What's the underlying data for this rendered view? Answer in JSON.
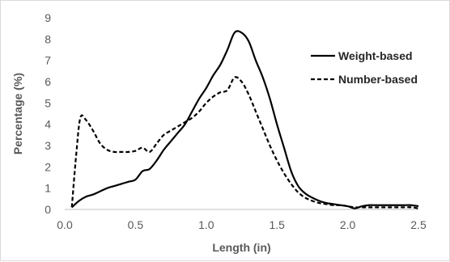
{
  "chart_data": {
    "type": "line",
    "title": "",
    "xlabel": "Length (in)",
    "ylabel": "Percentage (%)",
    "xlim": [
      0,
      2.5
    ],
    "ylim": [
      0,
      9
    ],
    "x_ticks": [
      "0.0",
      "0.5",
      "1.0",
      "1.5",
      "2.0",
      "2.5"
    ],
    "y_ticks": [
      "0",
      "1",
      "2",
      "3",
      "4",
      "5",
      "6",
      "7",
      "8",
      "9"
    ],
    "grid": false,
    "legend_position": "top-right",
    "series": [
      {
        "name": "Weight-based",
        "style": "solid",
        "color": "#000000",
        "x": [
          0.05,
          0.1,
          0.15,
          0.2,
          0.25,
          0.3,
          0.35,
          0.4,
          0.45,
          0.5,
          0.55,
          0.6,
          0.65,
          0.7,
          0.75,
          0.8,
          0.85,
          0.9,
          0.95,
          1.0,
          1.05,
          1.1,
          1.15,
          1.2,
          1.25,
          1.3,
          1.35,
          1.4,
          1.45,
          1.5,
          1.55,
          1.6,
          1.65,
          1.7,
          1.75,
          1.8,
          1.85,
          1.9,
          1.95,
          2.0,
          2.05,
          2.1,
          2.15,
          2.2,
          2.25,
          2.3,
          2.35,
          2.4,
          2.45,
          2.5
        ],
        "y": [
          0.1,
          0.4,
          0.6,
          0.7,
          0.85,
          1.0,
          1.1,
          1.2,
          1.3,
          1.4,
          1.8,
          1.9,
          2.3,
          2.8,
          3.2,
          3.6,
          4.0,
          4.6,
          5.2,
          5.7,
          6.3,
          6.8,
          7.5,
          8.3,
          8.3,
          7.9,
          7.0,
          6.2,
          5.2,
          4.0,
          2.9,
          1.8,
          1.1,
          0.75,
          0.55,
          0.4,
          0.3,
          0.25,
          0.2,
          0.15,
          0.05,
          0.15,
          0.2,
          0.2,
          0.2,
          0.2,
          0.2,
          0.2,
          0.2,
          0.15
        ]
      },
      {
        "name": "Number-based",
        "style": "dashed",
        "color": "#000000",
        "x": [
          0.05,
          0.08,
          0.11,
          0.15,
          0.2,
          0.25,
          0.3,
          0.35,
          0.4,
          0.45,
          0.5,
          0.55,
          0.6,
          0.65,
          0.7,
          0.75,
          0.8,
          0.85,
          0.9,
          0.95,
          1.0,
          1.05,
          1.1,
          1.15,
          1.2,
          1.25,
          1.3,
          1.35,
          1.4,
          1.45,
          1.5,
          1.55,
          1.6,
          1.65,
          1.7,
          1.75,
          1.8,
          1.85,
          1.9,
          1.95,
          2.0,
          2.05,
          2.1,
          2.15,
          2.2,
          2.25,
          2.3,
          2.35,
          2.4,
          2.45,
          2.5
        ],
        "y": [
          0.1,
          2.5,
          4.3,
          4.2,
          3.7,
          3.1,
          2.8,
          2.7,
          2.7,
          2.7,
          2.75,
          2.9,
          2.7,
          3.1,
          3.5,
          3.7,
          3.9,
          4.1,
          4.3,
          4.6,
          5.0,
          5.3,
          5.5,
          5.6,
          6.2,
          6.0,
          5.4,
          4.6,
          3.8,
          3.0,
          2.3,
          1.7,
          1.2,
          0.8,
          0.55,
          0.4,
          0.3,
          0.25,
          0.2,
          0.2,
          0.15,
          0.1,
          0.1,
          0.1,
          0.1,
          0.1,
          0.1,
          0.1,
          0.1,
          0.1,
          0.05
        ]
      }
    ]
  }
}
